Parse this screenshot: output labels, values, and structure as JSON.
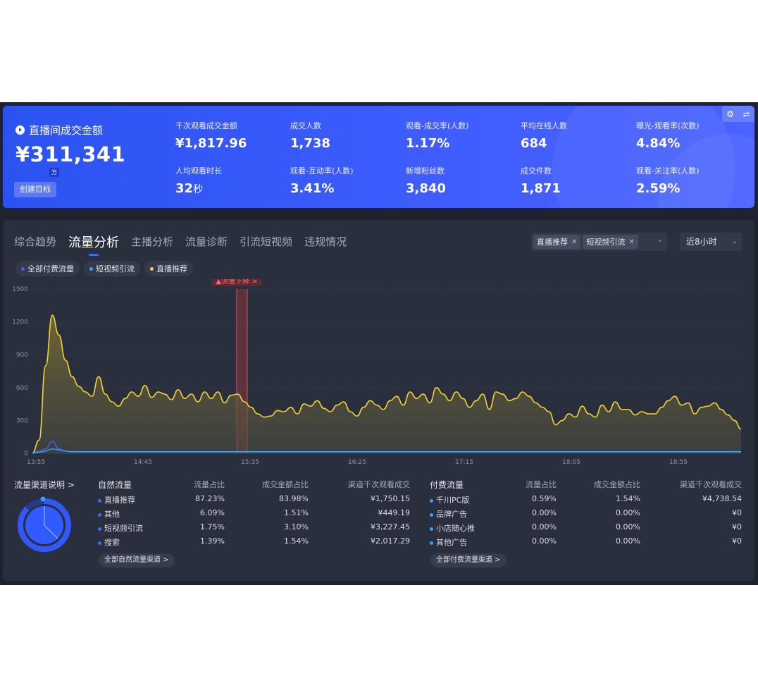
{
  "kpi": {
    "main_title": "直播间成交金额",
    "main_value": "¥311,341",
    "unit_badge": "万",
    "goal_button": "创建目标",
    "metrics": [
      {
        "label": "千次观看成交金额",
        "value": "¥1,817.96",
        "unit": ""
      },
      {
        "label": "成交人数",
        "value": "1,738",
        "unit": ""
      },
      {
        "label": "观看-成交率(人数)",
        "value": "1.17%",
        "unit": ""
      },
      {
        "label": "平均在线人数",
        "value": "684",
        "unit": ""
      },
      {
        "label": "曝光-观看率(次数)",
        "value": "4.84%",
        "unit": ""
      },
      {
        "label": "人均观看时长",
        "value": "32",
        "unit": "秒"
      },
      {
        "label": "观看-互动率(人数)",
        "value": "3.41%",
        "unit": ""
      },
      {
        "label": "新增粉丝数",
        "value": "3,840",
        "unit": ""
      },
      {
        "label": "成交件数",
        "value": "1,871",
        "unit": ""
      },
      {
        "label": "观看-关注率(人数)",
        "value": "2.59%",
        "unit": ""
      }
    ]
  },
  "tabs": [
    "综合趋势",
    "流量分析",
    "主播分析",
    "流量诊断",
    "引流短视频",
    "违规情况"
  ],
  "active_tab": 1,
  "filter": {
    "chips": [
      "直播推荐",
      "短视频引流"
    ],
    "range": "近8小时"
  },
  "legend": [
    {
      "label": "全部付费流量",
      "color": "#4a5cff"
    },
    {
      "label": "短视频引流",
      "color": "#2fa4ff"
    },
    {
      "label": "直播推荐",
      "color": "#f2d22e"
    }
  ],
  "alert_label": "▲流量下降 >",
  "chart_data": {
    "type": "line",
    "x_ticks": [
      "13:55",
      "14:45",
      "15:35",
      "16:25",
      "17:15",
      "18:05",
      "18:55"
    ],
    "y_ticks": [
      0,
      300,
      600,
      900,
      1200,
      1500
    ],
    "ylim": [
      0,
      1500
    ],
    "series": [
      {
        "name": "直播推荐",
        "color": "#f2d22e",
        "values": [
          0,
          120,
          800,
          1260,
          1080,
          850,
          700,
          610,
          560,
          520,
          700,
          540,
          470,
          430,
          500,
          560,
          520,
          620,
          510,
          560,
          540,
          490,
          580,
          500,
          540,
          470,
          560,
          500,
          560,
          460,
          530,
          540,
          470,
          420,
          360,
          330,
          340,
          390,
          380,
          420,
          360,
          450,
          430,
          480,
          410,
          380,
          440,
          470,
          380,
          340,
          420,
          480,
          440,
          400,
          480,
          520,
          440,
          560,
          500,
          540,
          460,
          600,
          540,
          480,
          560,
          500,
          420,
          480,
          540,
          400,
          560,
          540,
          480,
          500,
          560,
          520,
          460,
          420,
          380,
          260,
          300,
          360,
          330,
          430,
          360,
          330,
          440,
          380,
          470,
          400,
          400,
          350,
          380,
          360,
          360,
          420,
          480,
          520,
          440,
          460,
          360,
          420,
          430,
          460,
          400,
          350,
          300,
          220
        ]
      },
      {
        "name": "全部付费流量",
        "color": "#4a5cff",
        "values": [
          0,
          20,
          40,
          110,
          40,
          20,
          10,
          10,
          10,
          10,
          10,
          10,
          10,
          10,
          10,
          10,
          10,
          10,
          10,
          10,
          10,
          10,
          10,
          10,
          10,
          10,
          10,
          10,
          10,
          10,
          10,
          10,
          10,
          10,
          10,
          10,
          10,
          10,
          10,
          10,
          10,
          10,
          10,
          10,
          10,
          10,
          10,
          10,
          10,
          10,
          10,
          10,
          10,
          10,
          10,
          10,
          10,
          10,
          10,
          10,
          10,
          10,
          10,
          10,
          10,
          10,
          10,
          10,
          10,
          10,
          10,
          10,
          10,
          10,
          10,
          10,
          10,
          10,
          10,
          10,
          10,
          10,
          10,
          10,
          10,
          10,
          10,
          10,
          10,
          10,
          10,
          10,
          10,
          10,
          10,
          10,
          10,
          10,
          10,
          10,
          10,
          10,
          10,
          10,
          10,
          10,
          10,
          10
        ]
      },
      {
        "name": "短视频引流",
        "color": "#2fa4ff",
        "values": [
          0,
          10,
          20,
          40,
          30,
          20,
          15,
          15,
          15,
          15,
          15,
          15,
          15,
          15,
          15,
          15,
          15,
          15,
          15,
          15,
          15,
          15,
          15,
          15,
          15,
          15,
          15,
          15,
          15,
          15,
          15,
          15,
          15,
          15,
          15,
          15,
          15,
          15,
          15,
          15,
          15,
          15,
          15,
          15,
          15,
          15,
          15,
          15,
          15,
          15,
          15,
          15,
          15,
          15,
          15,
          15,
          15,
          15,
          15,
          15,
          15,
          15,
          15,
          15,
          15,
          15,
          15,
          15,
          15,
          15,
          15,
          15,
          15,
          15,
          15,
          15,
          15,
          15,
          15,
          15,
          15,
          15,
          15,
          15,
          15,
          15,
          15,
          15,
          15,
          15,
          15,
          15,
          15,
          15,
          15,
          15,
          15,
          15,
          15,
          15,
          15,
          15,
          15,
          15,
          15,
          15,
          15,
          15
        ]
      }
    ]
  },
  "bottom": {
    "channel_title": "流量渠道说明 >",
    "natural": {
      "headers": [
        "自然流量",
        "流量占比",
        "成交金额占比",
        "渠道千次观看成交"
      ],
      "rows": [
        {
          "name": "直播推荐",
          "share": "87.23%",
          "gmv_share": "83.98%",
          "k_gmv": "¥1,750.15",
          "color": "#3b6cff"
        },
        {
          "name": "其他",
          "share": "6.09%",
          "gmv_share": "1.51%",
          "k_gmv": "¥449.19",
          "color": "#3b6cff"
        },
        {
          "name": "短视频引流",
          "share": "1.75%",
          "gmv_share": "3.10%",
          "k_gmv": "¥3,227.45",
          "color": "#3b6cff"
        },
        {
          "name": "搜索",
          "share": "1.39%",
          "gmv_share": "1.54%",
          "k_gmv": "¥2,017.29",
          "color": "#3b6cff"
        }
      ],
      "more": "全部自然流量渠道 >"
    },
    "paid": {
      "headers": [
        "付费流量",
        "流量占比",
        "成交金额占比",
        "渠道千次观看成交"
      ],
      "rows": [
        {
          "name": "千川PC版",
          "share": "0.59%",
          "gmv_share": "1.54%",
          "k_gmv": "¥4,738.54",
          "color": "#2fa4ff"
        },
        {
          "name": "品牌广告",
          "share": "0.00%",
          "gmv_share": "0.00%",
          "k_gmv": "¥0",
          "color": "#2fa4ff"
        },
        {
          "name": "小店随心推",
          "share": "0.00%",
          "gmv_share": "0.00%",
          "k_gmv": "¥0",
          "color": "#2fa4ff"
        },
        {
          "name": "其他广告",
          "share": "0.00%",
          "gmv_share": "0.00%",
          "k_gmv": "¥0",
          "color": "#2fa4ff"
        }
      ],
      "more": "全部付费流量渠道 >"
    }
  }
}
